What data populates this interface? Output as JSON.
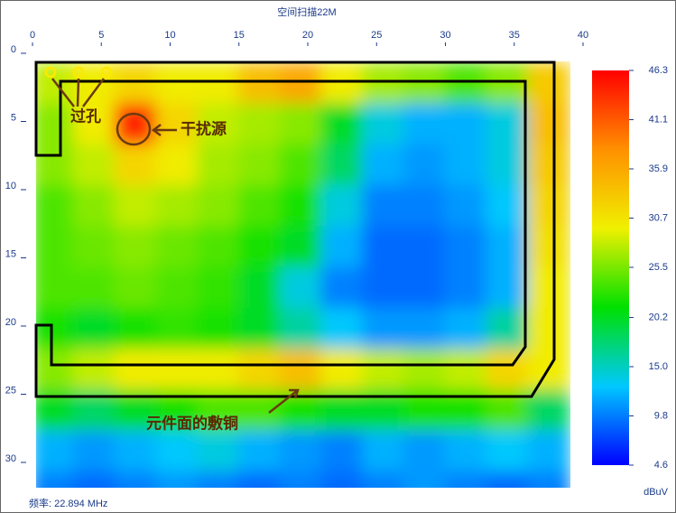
{
  "chart_data": {
    "type": "heatmap",
    "title": "空间扫描22M",
    "footer": "频率: 22.894 MHz",
    "annotations": [
      "过孔",
      "干扰源",
      "元件面的敷铜"
    ],
    "xlim": [
      0,
      40
    ],
    "xticks": [
      0,
      5,
      10,
      15,
      20,
      25,
      30,
      35,
      40
    ],
    "ylim": [
      0,
      32
    ],
    "yticks": [
      0,
      5,
      10,
      15,
      20,
      25,
      30
    ],
    "x": [
      1.5,
      4.5,
      7.5,
      10.5,
      13.5,
      16.5,
      19.5,
      22.5,
      25.5,
      28.5,
      31.5,
      34.5,
      37.5
    ],
    "y": [
      2.5,
      5.5,
      8.5,
      11.5,
      14.5,
      17.5,
      20.5,
      23.5,
      26.5,
      29.5,
      32.5
    ],
    "z": [
      [
        28,
        30,
        32,
        30,
        30,
        34,
        36,
        30,
        27,
        26,
        24,
        26,
        33
      ],
      [
        26,
        30,
        44,
        32,
        28,
        27,
        26,
        20,
        14,
        12,
        12,
        14,
        34
      ],
      [
        26,
        28,
        32,
        30,
        27,
        26,
        24,
        18,
        12,
        11,
        12,
        14,
        33
      ],
      [
        24,
        26,
        28,
        27,
        26,
        24,
        22,
        14,
        10,
        10,
        11,
        13,
        32
      ],
      [
        24,
        25,
        26,
        25,
        24,
        22,
        20,
        12,
        9,
        9,
        10,
        12,
        31
      ],
      [
        24,
        24,
        25,
        24,
        23,
        20,
        14,
        10,
        9,
        9,
        10,
        12,
        30
      ],
      [
        22,
        20,
        22,
        23,
        22,
        20,
        16,
        13,
        11,
        11,
        12,
        16,
        30
      ],
      [
        26,
        28,
        30,
        30,
        30,
        32,
        34,
        30,
        28,
        27,
        28,
        32,
        30
      ],
      [
        20,
        18,
        20,
        22,
        24,
        24,
        22,
        20,
        20,
        22,
        22,
        24,
        18
      ],
      [
        12,
        11,
        12,
        13,
        14,
        12,
        11,
        10,
        12,
        11,
        12,
        13,
        12
      ],
      [
        10,
        9,
        10,
        11,
        10,
        9,
        10,
        9,
        10,
        11,
        10,
        9,
        10
      ]
    ],
    "colorbar_label": "dBuV",
    "zlim": [
      4.6,
      46.3
    ],
    "zticks": [
      46.3,
      41.1,
      35.9,
      30.7,
      25.5,
      20.2,
      {
        "value": 15,
        "label": "15.0"
      },
      9.8,
      4.6
    ],
    "colors": [
      "#0000ff",
      "#00c8ff",
      "#00e000",
      "#f0f000",
      "#ff9000",
      "#ff0000"
    ]
  }
}
